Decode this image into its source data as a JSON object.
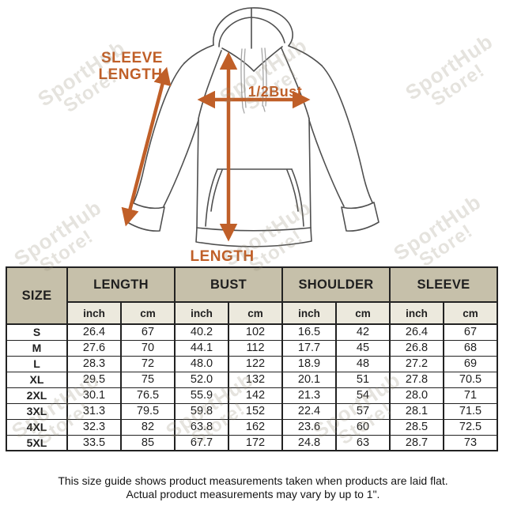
{
  "diagram": {
    "accent_color": "#c05f28",
    "labels": {
      "sleeve_line1": "SLEEVE",
      "sleeve_line2": "LENGTH",
      "half_bust": "1/2Bust",
      "length": "LENGTH"
    }
  },
  "watermark": {
    "line1": "SportHub",
    "line2": "Store!"
  },
  "size_table": {
    "size_header": "SIZE",
    "col_groups": [
      "LENGTH",
      "BUST",
      "SHOULDER",
      "SLEEVE"
    ],
    "unit_headers": [
      "inch",
      "cm",
      "inch",
      "cm",
      "inch",
      "cm",
      "inch",
      "cm"
    ],
    "header_bg": "#c6c0aa",
    "subheader_bg": "#ece9dd",
    "rows": [
      {
        "size": "S",
        "values": [
          "26.4",
          "67",
          "40.2",
          "102",
          "16.5",
          "42",
          "26.4",
          "67"
        ]
      },
      {
        "size": "M",
        "values": [
          "27.6",
          "70",
          "44.1",
          "112",
          "17.7",
          "45",
          "26.8",
          "68"
        ]
      },
      {
        "size": "L",
        "values": [
          "28.3",
          "72",
          "48.0",
          "122",
          "18.9",
          "48",
          "27.2",
          "69"
        ]
      },
      {
        "size": "XL",
        "values": [
          "29.5",
          "75",
          "52.0",
          "132",
          "20.1",
          "51",
          "27.8",
          "70.5"
        ]
      },
      {
        "size": "2XL",
        "values": [
          "30.1",
          "76.5",
          "55.9",
          "142",
          "21.3",
          "54",
          "28.0",
          "71"
        ]
      },
      {
        "size": "3XL",
        "values": [
          "31.3",
          "79.5",
          "59.8",
          "152",
          "22.4",
          "57",
          "28.1",
          "71.5"
        ]
      },
      {
        "size": "4XL",
        "values": [
          "32.3",
          "82",
          "63.8",
          "162",
          "23.6",
          "60",
          "28.5",
          "72.5"
        ]
      },
      {
        "size": "5XL",
        "values": [
          "33.5",
          "85",
          "67.7",
          "172",
          "24.8",
          "63",
          "28.7",
          "73"
        ]
      }
    ]
  },
  "footer": {
    "line1": "This size guide shows product measurements taken when products are laid flat.",
    "line2": "Actual product measurements may vary by up to 1\"."
  },
  "chart_data": {
    "type": "table",
    "columns": [
      "SIZE",
      "LENGTH inch",
      "LENGTH cm",
      "BUST inch",
      "BUST cm",
      "SHOULDER inch",
      "SHOULDER cm",
      "SLEEVE inch",
      "SLEEVE cm"
    ],
    "rows": [
      [
        "S",
        26.4,
        67,
        40.2,
        102,
        16.5,
        42,
        26.4,
        67
      ],
      [
        "M",
        27.6,
        70,
        44.1,
        112,
        17.7,
        45,
        26.8,
        68
      ],
      [
        "L",
        28.3,
        72,
        48.0,
        122,
        18.9,
        48,
        27.2,
        69
      ],
      [
        "XL",
        29.5,
        75,
        52.0,
        132,
        20.1,
        51,
        27.8,
        70.5
      ],
      [
        "2XL",
        30.1,
        76.5,
        55.9,
        142,
        21.3,
        54,
        28.0,
        71
      ],
      [
        "3XL",
        31.3,
        79.5,
        59.8,
        152,
        22.4,
        57,
        28.1,
        71.5
      ],
      [
        "4XL",
        32.3,
        82,
        63.8,
        162,
        23.6,
        60,
        28.5,
        72.5
      ],
      [
        "5XL",
        33.5,
        85,
        67.7,
        172,
        24.8,
        63,
        28.7,
        73
      ]
    ],
    "annotations": [
      "SLEEVE LENGTH",
      "1/2Bust",
      "LENGTH"
    ]
  }
}
